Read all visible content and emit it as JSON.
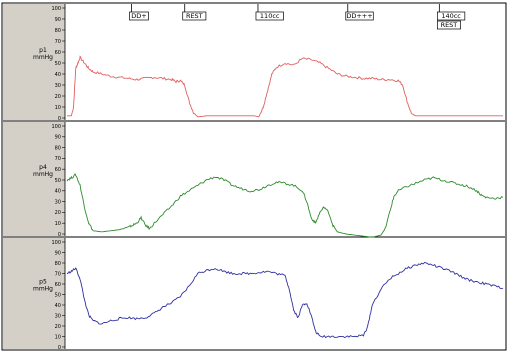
{
  "chart_data": {
    "type": "line",
    "y_ticks": [
      0,
      10,
      20,
      30,
      40,
      50,
      60,
      70,
      80,
      90,
      100
    ],
    "ylim": [
      0,
      100
    ],
    "xlim": [
      0,
      100
    ],
    "markers": [
      {
        "label": "DD+",
        "x": 14.8
      },
      {
        "label": "REST",
        "x": 27.0
      },
      {
        "label": "110cc",
        "x": 43.8
      },
      {
        "label": "DD+++",
        "x": 64.4
      },
      {
        "label": "140cc",
        "x": 85.4
      },
      {
        "label": "REST",
        "x": 85.4
      }
    ],
    "channels": [
      {
        "name": "p1",
        "unit": "mmHg",
        "color": "#e06060",
        "points": [
          [
            0,
            2
          ],
          [
            1,
            2
          ],
          [
            1.5,
            10
          ],
          [
            2,
            45
          ],
          [
            2.5,
            50
          ],
          [
            3,
            55
          ],
          [
            4,
            50
          ],
          [
            5,
            45
          ],
          [
            6,
            42
          ],
          [
            8,
            40
          ],
          [
            10,
            38
          ],
          [
            12,
            37
          ],
          [
            14,
            36
          ],
          [
            16,
            35
          ],
          [
            18,
            36
          ],
          [
            20,
            37
          ],
          [
            22,
            36
          ],
          [
            24,
            35
          ],
          [
            25,
            33
          ],
          [
            26,
            34
          ],
          [
            27,
            30
          ],
          [
            28,
            15
          ],
          [
            29,
            5
          ],
          [
            30,
            1
          ],
          [
            32,
            2
          ],
          [
            35,
            2
          ],
          [
            38,
            2
          ],
          [
            41,
            2
          ],
          [
            43,
            2
          ],
          [
            44,
            1
          ],
          [
            45,
            10
          ],
          [
            46,
            25
          ],
          [
            47,
            40
          ],
          [
            48,
            46
          ],
          [
            50,
            50
          ],
          [
            52,
            48
          ],
          [
            54,
            54
          ],
          [
            56,
            53
          ],
          [
            58,
            50
          ],
          [
            60,
            45
          ],
          [
            62,
            40
          ],
          [
            64,
            38
          ],
          [
            66,
            37
          ],
          [
            68,
            36
          ],
          [
            70,
            36
          ],
          [
            72,
            35
          ],
          [
            74,
            35
          ],
          [
            76,
            34
          ],
          [
            77,
            30
          ],
          [
            78,
            15
          ],
          [
            79,
            4
          ],
          [
            80,
            2
          ],
          [
            84,
            2
          ],
          [
            88,
            2
          ],
          [
            92,
            2
          ],
          [
            96,
            2
          ],
          [
            100,
            2
          ]
        ]
      },
      {
        "name": "p4",
        "unit": "mmHg",
        "color": "#2e8b2e",
        "points": [
          [
            0,
            50
          ],
          [
            1,
            52
          ],
          [
            2,
            55
          ],
          [
            3,
            45
          ],
          [
            4,
            25
          ],
          [
            5,
            10
          ],
          [
            6,
            3
          ],
          [
            8,
            2
          ],
          [
            10,
            3
          ],
          [
            12,
            4
          ],
          [
            14,
            6
          ],
          [
            15,
            8
          ],
          [
            16,
            10
          ],
          [
            17,
            15
          ],
          [
            18,
            8
          ],
          [
            19,
            5
          ],
          [
            20,
            10
          ],
          [
            22,
            18
          ],
          [
            24,
            26
          ],
          [
            26,
            35
          ],
          [
            28,
            40
          ],
          [
            30,
            45
          ],
          [
            32,
            50
          ],
          [
            34,
            53
          ],
          [
            36,
            50
          ],
          [
            38,
            45
          ],
          [
            40,
            42
          ],
          [
            42,
            40
          ],
          [
            44,
            41
          ],
          [
            46,
            45
          ],
          [
            48,
            48
          ],
          [
            50,
            47
          ],
          [
            52,
            45
          ],
          [
            54,
            40
          ],
          [
            55,
            30
          ],
          [
            56,
            15
          ],
          [
            57,
            10
          ],
          [
            58,
            20
          ],
          [
            59,
            25
          ],
          [
            60,
            20
          ],
          [
            61,
            8
          ],
          [
            62,
            2
          ],
          [
            64,
            0
          ],
          [
            66,
            -1
          ],
          [
            68,
            -2
          ],
          [
            70,
            -3
          ],
          [
            72,
            -1
          ],
          [
            73,
            5
          ],
          [
            74,
            20
          ],
          [
            75,
            35
          ],
          [
            76,
            40
          ],
          [
            78,
            44
          ],
          [
            80,
            47
          ],
          [
            82,
            50
          ],
          [
            84,
            52
          ],
          [
            86,
            50
          ],
          [
            88,
            48
          ],
          [
            90,
            46
          ],
          [
            92,
            44
          ],
          [
            94,
            40
          ],
          [
            95,
            36
          ],
          [
            96,
            34
          ],
          [
            98,
            33
          ],
          [
            100,
            34
          ]
        ]
      },
      {
        "name": "p5",
        "unit": "mmHg",
        "color": "#3030a0",
        "points": [
          [
            0,
            70
          ],
          [
            1,
            72
          ],
          [
            2,
            75
          ],
          [
            3,
            65
          ],
          [
            4,
            45
          ],
          [
            5,
            30
          ],
          [
            6,
            25
          ],
          [
            8,
            22
          ],
          [
            10,
            25
          ],
          [
            12,
            27
          ],
          [
            14,
            28
          ],
          [
            16,
            27
          ],
          [
            18,
            28
          ],
          [
            20,
            32
          ],
          [
            22,
            38
          ],
          [
            24,
            42
          ],
          [
            26,
            48
          ],
          [
            28,
            58
          ],
          [
            30,
            70
          ],
          [
            32,
            73
          ],
          [
            34,
            75
          ],
          [
            36,
            72
          ],
          [
            38,
            70
          ],
          [
            40,
            70
          ],
          [
            42,
            70
          ],
          [
            44,
            71
          ],
          [
            46,
            72
          ],
          [
            48,
            70
          ],
          [
            50,
            68
          ],
          [
            51,
            55
          ],
          [
            52,
            35
          ],
          [
            53,
            28
          ],
          [
            54,
            40
          ],
          [
            55,
            42
          ],
          [
            56,
            30
          ],
          [
            57,
            15
          ],
          [
            58,
            10
          ],
          [
            60,
            10
          ],
          [
            62,
            10
          ],
          [
            64,
            10
          ],
          [
            66,
            10
          ],
          [
            68,
            11
          ],
          [
            69,
            20
          ],
          [
            70,
            40
          ],
          [
            72,
            55
          ],
          [
            74,
            65
          ],
          [
            76,
            70
          ],
          [
            78,
            75
          ],
          [
            80,
            78
          ],
          [
            82,
            80
          ],
          [
            84,
            78
          ],
          [
            86,
            75
          ],
          [
            88,
            72
          ],
          [
            90,
            68
          ],
          [
            92,
            64
          ],
          [
            94,
            62
          ],
          [
            96,
            60
          ],
          [
            98,
            58
          ],
          [
            100,
            56
          ]
        ]
      }
    ]
  }
}
